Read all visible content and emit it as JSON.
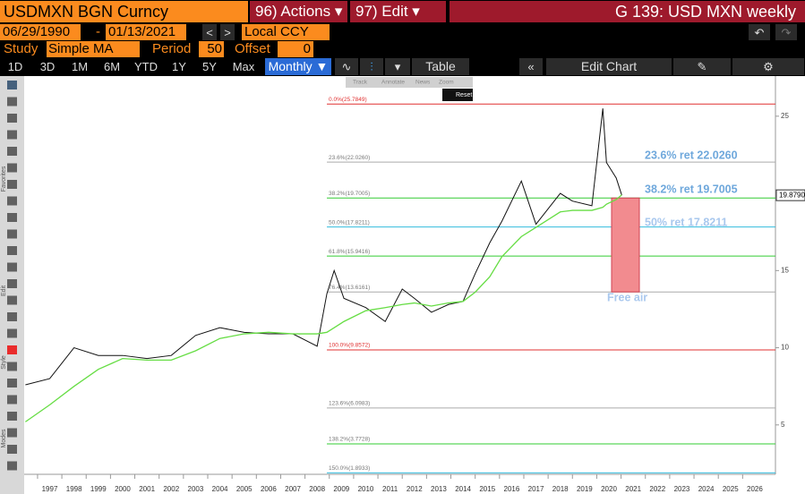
{
  "toolbar": {
    "security": "USDMXN BGN Curncy",
    "actions": "96) Actions ▾",
    "edit": "97) Edit ▾",
    "function": "G 139: USD MXN weekly",
    "start_date": "06/29/1990",
    "dash": "-",
    "end_date": "01/13/2021",
    "currency": "Local CCY",
    "study_label": "Study",
    "study": "Simple MA",
    "period_label": "Period",
    "period": "50",
    "offset_label": "Offset",
    "offset": "0",
    "ranges": [
      "1D",
      "3D",
      "1M",
      "6M",
      "YTD",
      "1Y",
      "5Y",
      "Max"
    ],
    "frequency": "Monthly ▼",
    "table": "Table",
    "edit_chart": "Edit Chart",
    "chart_tools": [
      "Track",
      "Annotate",
      "News",
      "Zoom"
    ],
    "reset": "Reset",
    "side_labels": [
      "Favorites",
      "Edit",
      "Style",
      "Modes"
    ]
  },
  "chart_data": {
    "type": "line",
    "x": [
      1996.5,
      1997.5,
      1998.5,
      1999.5,
      2000.5,
      2001.5,
      2002.5,
      2003.5,
      2004.5,
      2005.5,
      2006.5,
      2007.5,
      2008.5,
      2008.9,
      2009.2,
      2009.6,
      2010.5,
      2011.3,
      2012.0,
      2012.5,
      2013.2,
      2013.9,
      2014.5,
      2015.0,
      2015.6,
      2016.1,
      2016.9,
      2017.5,
      2018.0,
      2018.5,
      2019.0,
      2019.8,
      2020.25,
      2020.4,
      2020.8,
      2021.03
    ],
    "series": [
      {
        "name": "USDMXN",
        "color": "#111111",
        "values": [
          7.6,
          8.0,
          10.0,
          9.5,
          9.5,
          9.3,
          9.5,
          10.8,
          11.3,
          11.0,
          10.9,
          10.9,
          10.1,
          13.5,
          15.0,
          13.2,
          12.6,
          11.7,
          13.8,
          13.2,
          12.3,
          12.8,
          13.0,
          14.8,
          16.8,
          18.2,
          20.8,
          18.0,
          19.0,
          20.0,
          19.5,
          19.2,
          25.5,
          22.0,
          21.0,
          19.879
        ]
      },
      {
        "name": "Simple MA",
        "color": "#66dd44",
        "values": [
          5.2,
          6.3,
          7.5,
          8.6,
          9.3,
          9.2,
          9.2,
          9.8,
          10.6,
          10.9,
          11.0,
          10.9,
          10.9,
          11.0,
          11.3,
          11.7,
          12.4,
          12.6,
          12.8,
          12.9,
          12.7,
          12.9,
          13.0,
          13.6,
          14.6,
          15.9,
          17.2,
          17.8,
          18.3,
          18.8,
          18.9,
          18.9,
          19.1,
          19.3,
          19.6,
          19.9
        ]
      }
    ],
    "last_price": {
      "value": 19.879,
      "label": "19.8790"
    },
    "xlim": [
      1996.45,
      2027.35
    ],
    "xticks": [
      1997,
      1998,
      1999,
      2000,
      2001,
      2002,
      2003,
      2004,
      2005,
      2006,
      2007,
      2008,
      2009,
      2010,
      2011,
      2012,
      2013,
      2014,
      2015,
      2016,
      2017,
      2018,
      2019,
      2020,
      2021,
      2022,
      2023,
      2024,
      2025,
      2026
    ],
    "ylim": [
      1.8,
      27.6
    ],
    "yticks": [
      5,
      10,
      15,
      25
    ],
    "fib_levels": [
      {
        "label": "0.0%(25.7849)",
        "value": 25.7849,
        "color": "#e03030"
      },
      {
        "label": "23.6%(22.0260)",
        "value": 22.026,
        "color": "#aaaaaa"
      },
      {
        "label": "38.2%(19.7005)",
        "value": 19.7005,
        "color": "#33cc33"
      },
      {
        "label": "50.0%(17.8211)",
        "value": 17.8211,
        "color": "#33bbdd"
      },
      {
        "label": "61.8%(15.9416)",
        "value": 15.9416,
        "color": "#33cc33"
      },
      {
        "label": "76.4%(13.6161)",
        "value": 13.6161,
        "color": "#aaaaaa"
      },
      {
        "label": "100.0%(9.8572)",
        "value": 9.8572,
        "color": "#e03030"
      },
      {
        "label": "123.6%(6.0983)",
        "value": 6.0983,
        "color": "#aaaaaa"
      },
      {
        "label": "138.2%(3.7728)",
        "value": 3.7728,
        "color": "#33cc33"
      },
      {
        "label": "150.0%(1.8933)",
        "value": 1.8933,
        "color": "#33bbdd"
      }
    ],
    "annotations": [
      "23.6% ret 22.0260",
      "38.2% ret 19.7005",
      "50% ret 17.8211",
      "Free air"
    ]
  }
}
